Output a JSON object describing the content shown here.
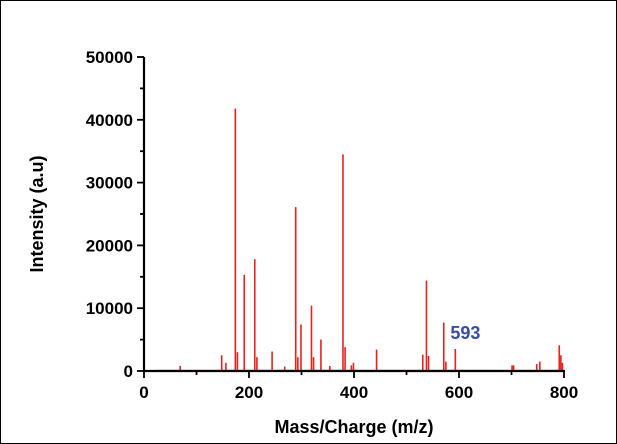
{
  "chart_data": {
    "type": "line",
    "title": "",
    "xlabel": "Mass/Charge (m/z)",
    "ylabel": "Intensity (a.u)",
    "xlim": [
      0,
      800
    ],
    "ylim": [
      0,
      50000
    ],
    "x_ticks": [
      0,
      200,
      400,
      600,
      800
    ],
    "y_ticks": [
      0,
      10000,
      20000,
      30000,
      40000,
      50000
    ],
    "x_tick_labels": [
      "0",
      "200",
      "400",
      "600",
      "800"
    ],
    "y_tick_labels": [
      "0",
      "10000",
      "20000",
      "30000",
      "40000",
      "50000"
    ],
    "grid": false,
    "legend": "none",
    "line_color": "#e8211f",
    "annotation": {
      "text": "593",
      "x": 593,
      "y": 3500,
      "color": "#3a4ea0"
    },
    "series": [
      {
        "peaks": [
          {
            "x": 69,
            "y": 800
          },
          {
            "x": 148,
            "y": 2500
          },
          {
            "x": 156,
            "y": 1300
          },
          {
            "x": 174,
            "y": 41800
          },
          {
            "x": 178,
            "y": 3000
          },
          {
            "x": 191,
            "y": 15300
          },
          {
            "x": 211,
            "y": 17800
          },
          {
            "x": 215,
            "y": 2200
          },
          {
            "x": 244,
            "y": 3100
          },
          {
            "x": 268,
            "y": 700
          },
          {
            "x": 289,
            "y": 26100
          },
          {
            "x": 293,
            "y": 2200
          },
          {
            "x": 299,
            "y": 7400
          },
          {
            "x": 319,
            "y": 10400
          },
          {
            "x": 323,
            "y": 2200
          },
          {
            "x": 337,
            "y": 5000
          },
          {
            "x": 354,
            "y": 800
          },
          {
            "x": 379,
            "y": 34500
          },
          {
            "x": 383,
            "y": 3800
          },
          {
            "x": 395,
            "y": 900
          },
          {
            "x": 399,
            "y": 1300
          },
          {
            "x": 443,
            "y": 3400
          },
          {
            "x": 531,
            "y": 2600
          },
          {
            "x": 538,
            "y": 14400
          },
          {
            "x": 542,
            "y": 2400
          },
          {
            "x": 571,
            "y": 7700
          },
          {
            "x": 575,
            "y": 1500
          },
          {
            "x": 593,
            "y": 3500
          },
          {
            "x": 701,
            "y": 900
          },
          {
            "x": 704,
            "y": 900
          },
          {
            "x": 748,
            "y": 1100
          },
          {
            "x": 754,
            "y": 1500
          },
          {
            "x": 791,
            "y": 4100
          },
          {
            "x": 794,
            "y": 2500
          },
          {
            "x": 797,
            "y": 1300
          }
        ]
      }
    ]
  }
}
